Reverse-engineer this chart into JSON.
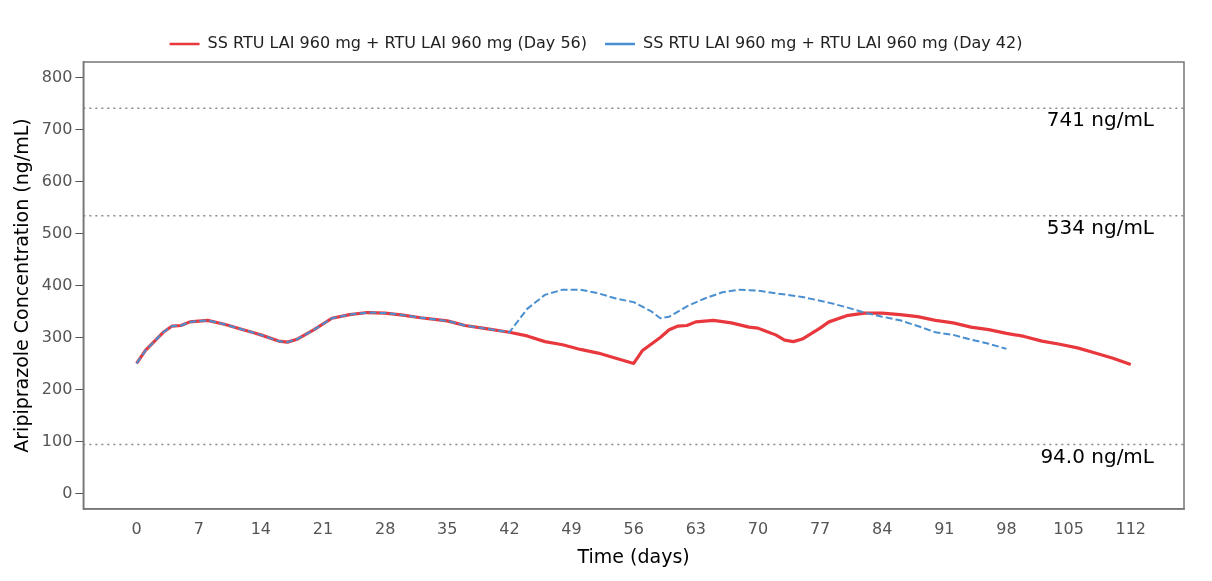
{
  "chart_data": {
    "type": "line",
    "xlabel": "Time (days)",
    "ylabel": "Aripiprazole Concentration (ng/mL)",
    "xlim": [
      -6,
      118
    ],
    "ylim": [
      -30,
      830
    ],
    "xticks": [
      0,
      7,
      14,
      21,
      28,
      35,
      42,
      49,
      56,
      63,
      70,
      77,
      84,
      91,
      98,
      105,
      112
    ],
    "yticks": [
      0,
      100,
      200,
      300,
      400,
      500,
      600,
      700,
      800
    ],
    "grid": false,
    "legend": "top",
    "marker": "none",
    "series": [
      {
        "name": "SS RTU LAI 960 mg + RTU LAI 960 mg (Day 56)",
        "color": "#e8383d",
        "line_style": "solid",
        "x": [
          0,
          1,
          3,
          4,
          5,
          6,
          8,
          10,
          12,
          14,
          16,
          17,
          18,
          20,
          22,
          24,
          26,
          28,
          30,
          32,
          35,
          37,
          39,
          42,
          44,
          46,
          48,
          50,
          52,
          54,
          56,
          57,
          59,
          60,
          61,
          62,
          63,
          65,
          67,
          69,
          70,
          72,
          73,
          74,
          75,
          77,
          78,
          80,
          82,
          84,
          86,
          88,
          90,
          92,
          94,
          96,
          98,
          100,
          102,
          104,
          106,
          108,
          110,
          112
        ],
        "values": [
          250,
          275,
          310,
          322,
          323,
          330,
          333,
          325,
          315,
          305,
          293,
          291,
          296,
          315,
          337,
          344,
          348,
          347,
          343,
          338,
          332,
          323,
          318,
          310,
          303,
          292,
          286,
          277,
          270,
          260,
          250,
          275,
          300,
          315,
          322,
          323,
          330,
          333,
          328,
          320,
          318,
          305,
          295,
          292,
          297,
          318,
          330,
          342,
          347,
          347,
          344,
          340,
          333,
          328,
          320,
          315,
          308,
          302,
          293,
          287,
          280,
          270,
          260,
          248
        ]
      },
      {
        "name": "SS RTU LAI 960 mg + RTU LAI 960 mg (Day 42)",
        "color": "#4a8fd0",
        "line_style": "dashed",
        "x": [
          0,
          1,
          3,
          4,
          5,
          6,
          8,
          10,
          12,
          14,
          16,
          17,
          18,
          20,
          22,
          24,
          26,
          28,
          30,
          32,
          35,
          37,
          39,
          42,
          44,
          46,
          48,
          50,
          52,
          54,
          56,
          58,
          59,
          60,
          62,
          64,
          66,
          68,
          70,
          72,
          75,
          78,
          80,
          82,
          84,
          86,
          88,
          90,
          92,
          94,
          96,
          98
        ],
        "values": [
          250,
          275,
          310,
          322,
          323,
          330,
          333,
          325,
          315,
          305,
          293,
          291,
          296,
          315,
          337,
          344,
          348,
          347,
          343,
          338,
          332,
          323,
          318,
          310,
          355,
          382,
          392,
          392,
          385,
          375,
          368,
          350,
          337,
          340,
          360,
          375,
          387,
          392,
          390,
          385,
          378,
          367,
          358,
          348,
          340,
          333,
          322,
          310,
          305,
          296,
          288,
          278
        ]
      }
    ],
    "ref_lines": [
      {
        "axis": "y",
        "value": 741,
        "label": "741 ng/mL",
        "color": "#888888",
        "line_style": "dotted"
      },
      {
        "axis": "y",
        "value": 534,
        "label": "534 ng/mL",
        "color": "#888888",
        "line_style": "dotted"
      },
      {
        "axis": "y",
        "value": 94,
        "label": "94.0 ng/mL",
        "color": "#888888",
        "line_style": "dotted"
      }
    ]
  }
}
